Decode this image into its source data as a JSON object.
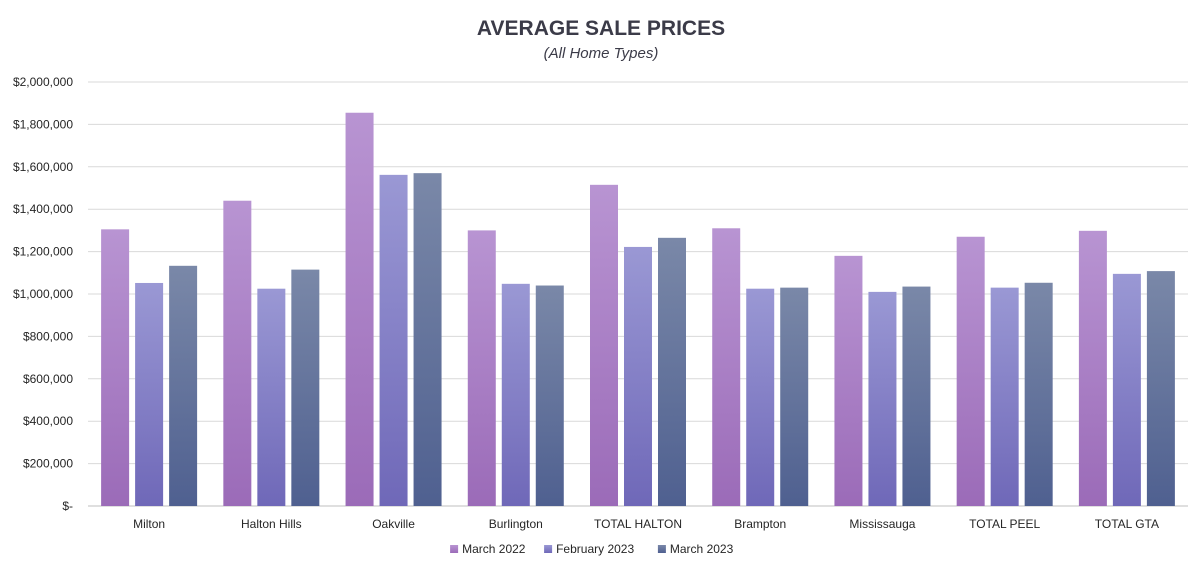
{
  "chart_data": {
    "type": "bar",
    "title": "AVERAGE SALE PRICES",
    "subtitle": "(All Home Types)",
    "xlabel": "",
    "ylabel": "",
    "ylim": [
      0,
      2000000
    ],
    "yticks": [
      0,
      200000,
      400000,
      600000,
      800000,
      1000000,
      1200000,
      1400000,
      1600000,
      1800000,
      2000000
    ],
    "ytick_labels": [
      "$-",
      "$200,000",
      "$400,000",
      "$600,000",
      "$800,000",
      "$1,000,000",
      "$1,200,000",
      "$1,400,000",
      "$1,600,000",
      "$1,800,000",
      "$2,000,000"
    ],
    "grid": true,
    "legend_position": "bottom",
    "categories": [
      "Milton",
      "Halton Hills",
      "Oakville",
      "Burlington",
      "TOTAL HALTON",
      "Brampton",
      "Mississauga",
      "TOTAL PEEL",
      "TOTAL GTA"
    ],
    "series": [
      {
        "name": "March 2022",
        "color_top": "#b894d2",
        "color_bottom": "#9b6bb8",
        "values": [
          1305000,
          1440000,
          1855000,
          1300000,
          1515000,
          1310000,
          1180000,
          1270000,
          1298000
        ]
      },
      {
        "name": "February 2023",
        "color_top": "#9a98d4",
        "color_bottom": "#6f68b8",
        "values": [
          1052000,
          1025000,
          1562000,
          1048000,
          1222000,
          1025000,
          1010000,
          1030000,
          1095000
        ]
      },
      {
        "name": "March 2023",
        "color_top": "#7a88a8",
        "color_bottom": "#4f6090",
        "values": [
          1133000,
          1115000,
          1570000,
          1040000,
          1265000,
          1030000,
          1035000,
          1053000,
          1108000
        ]
      }
    ]
  }
}
